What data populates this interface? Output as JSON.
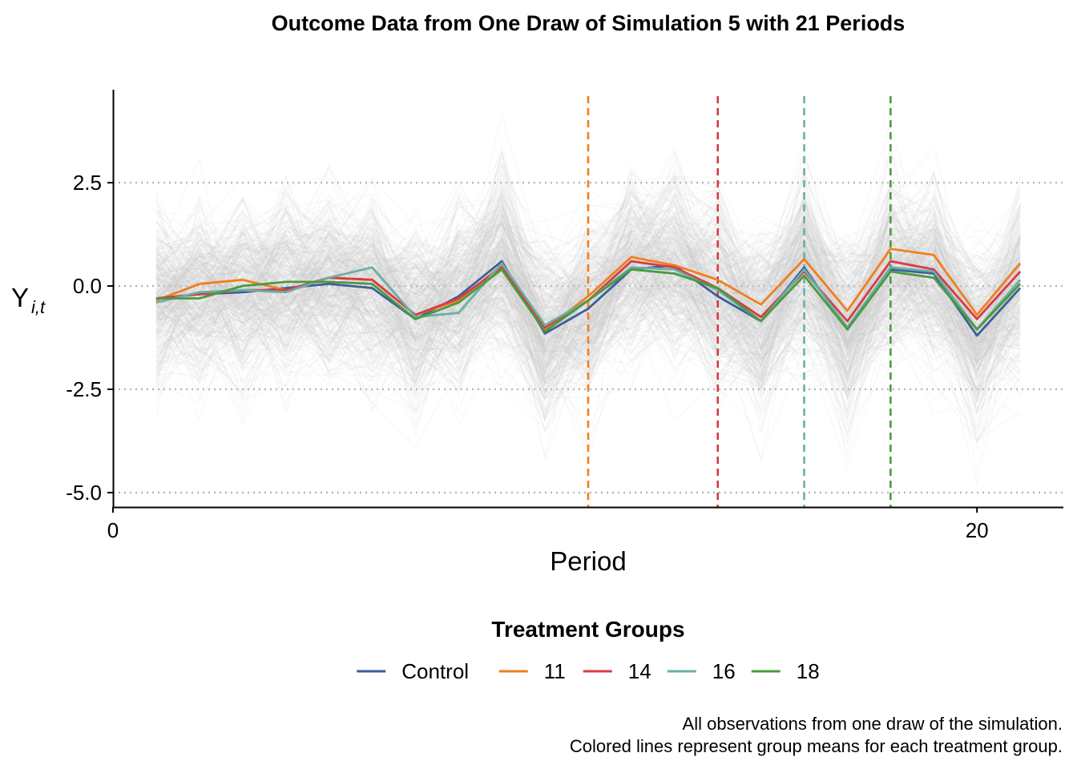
{
  "chart_data": {
    "type": "line",
    "title": "Outcome Data from One Draw of Simulation 5 with 21 Periods",
    "xlabel": "Period",
    "ylabel": "Y",
    "ylabel_subscript": "i,t",
    "xlim": [
      0,
      22
    ],
    "ylim": [
      -5.35,
      4.75
    ],
    "x_ticks": [
      0,
      20
    ],
    "y_ticks": [
      2.5,
      0.0,
      -2.5,
      -5.0
    ],
    "y_tick_labels": [
      "2.5",
      "0.0",
      "-2.5",
      "-5.0"
    ],
    "x": [
      1,
      2,
      3,
      4,
      5,
      6,
      7,
      8,
      9,
      10,
      11,
      12,
      13,
      14,
      15,
      16,
      17,
      18,
      19,
      20,
      21
    ],
    "grid": "horizontal dotted",
    "legend_title": "Treatment Groups",
    "legend_position": "bottom",
    "series": [
      {
        "name": "Control",
        "color": "#3B5F9B",
        "values": [
          -0.3,
          -0.2,
          -0.15,
          -0.05,
          0.05,
          -0.05,
          -0.8,
          -0.25,
          0.6,
          -1.15,
          -0.55,
          0.4,
          0.5,
          -0.25,
          -0.85,
          0.45,
          -1.05,
          0.4,
          0.3,
          -1.2,
          -0.05
        ]
      },
      {
        "name": "11",
        "color": "#F07F1E",
        "values": [
          -0.35,
          0.05,
          0.15,
          -0.1,
          0.2,
          0.15,
          -0.7,
          -0.35,
          0.5,
          -1.05,
          -0.25,
          0.7,
          0.5,
          0.15,
          -0.45,
          0.65,
          -0.6,
          0.9,
          0.75,
          -0.7,
          0.55
        ]
      },
      {
        "name": "14",
        "color": "#D93B47",
        "values": [
          -0.3,
          -0.2,
          -0.1,
          -0.1,
          0.2,
          0.15,
          -0.7,
          -0.3,
          0.45,
          -1.0,
          -0.35,
          0.6,
          0.45,
          -0.05,
          -0.75,
          0.35,
          -0.85,
          0.6,
          0.4,
          -0.8,
          0.35
        ]
      },
      {
        "name": "16",
        "color": "#6AAFA5",
        "values": [
          -0.4,
          -0.15,
          -0.1,
          -0.15,
          0.2,
          0.45,
          -0.75,
          -0.65,
          0.55,
          -0.95,
          -0.35,
          0.45,
          0.4,
          -0.1,
          -0.85,
          0.4,
          -1.0,
          0.45,
          0.35,
          -1.05,
          0.15
        ]
      },
      {
        "name": "18",
        "color": "#4B9A3F",
        "values": [
          -0.3,
          -0.3,
          0.0,
          0.1,
          0.1,
          0.05,
          -0.8,
          -0.4,
          0.4,
          -1.1,
          -0.35,
          0.4,
          0.3,
          -0.05,
          -0.85,
          0.25,
          -1.05,
          0.35,
          0.2,
          -1.05,
          0.05
        ]
      }
    ],
    "vlines": [
      {
        "x": 11,
        "color": "#F07F1E"
      },
      {
        "x": 14,
        "color": "#D93B47"
      },
      {
        "x": 16,
        "color": "#6AAFA5"
      },
      {
        "x": 18,
        "color": "#4B9A3F"
      }
    ],
    "background_lines": {
      "count": 400,
      "color": "#C8C8C8"
    }
  },
  "caption": {
    "line1": "All observations from one draw of the simulation.",
    "line2": "Colored lines represent group means for each treatment group."
  }
}
